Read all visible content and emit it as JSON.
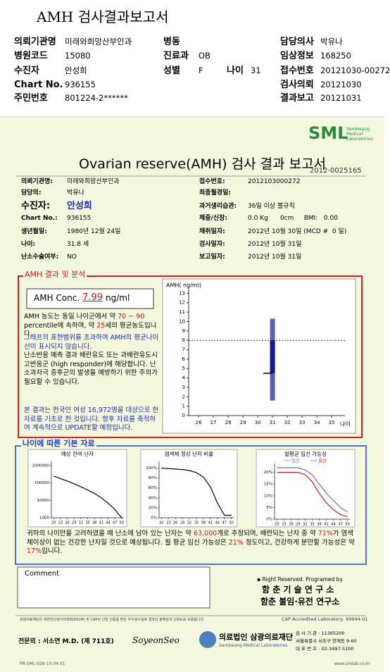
{
  "header": {
    "title": "AMH 검사결과보고서"
  },
  "top_info": {
    "rows": [
      [
        {
          "label": "의뢰기관명",
          "value": "미래와희망산부인과"
        },
        {
          "label": "병동"
        },
        {
          "label": "담당의사",
          "value": "박유나"
        }
      ],
      [
        {
          "label": "병원코드",
          "value": "15080"
        },
        {
          "label": "진료과",
          "value": "OB"
        },
        {
          "label": "임상정보",
          "value": "168250"
        }
      ],
      [
        {
          "label": "수진자",
          "value": "안성희"
        },
        {
          "label": "성별",
          "value": "F"
        },
        {
          "label": "나이",
          "value": "31"
        },
        {
          "label": "접수번호",
          "value": "20121030-00272"
        }
      ],
      [
        {
          "label": "Chart No.",
          "value": "936155"
        },
        {
          "label": "검사의뢰",
          "value": "20121030"
        }
      ],
      [
        {
          "label": "주민번호",
          "value": "801224-2******"
        },
        {
          "label": "결과보고",
          "value": "20121031"
        }
      ]
    ]
  },
  "report": {
    "logo": "SML",
    "logo_sub": "Samkwang Medical Laboratories",
    "title": "Ovarian reserve(AMH) 검사 결과 보고서",
    "number": "2012-0025165"
  },
  "patient_info": {
    "left": [
      {
        "label": "의뢰기관명:",
        "value": "미래와희망산부인과"
      },
      {
        "label": "담당의:",
        "value": "박유나"
      },
      {
        "label": "수진자:",
        "value": "안성희"
      },
      {
        "label": "Chart No.:",
        "value": "936155"
      },
      {
        "label": "생년월일:",
        "value": "1980년 12월 24일"
      },
      {
        "label": "나이:",
        "value": "31.8 세"
      },
      {
        "label": "난소수술여부:",
        "value": "NO"
      }
    ],
    "right": [
      {
        "label": "접수번호:",
        "value": "2012103000272"
      },
      {
        "label": "최종월경일:"
      },
      {
        "label": "과거생리습관:",
        "value": "36일 이상 불규칙"
      },
      {
        "label": "체중/신장:",
        "value": "0.0 Kg      0cm     BMI:   0.00"
      },
      {
        "label": "채취일자:",
        "value": "2012년 10월 30일 (MCD #  0 일)"
      },
      {
        "label": "검사일자:",
        "value": "2012년 10월 31일"
      },
      {
        "label": "보고일자:",
        "value": "2012년 10월 31일"
      }
    ]
  },
  "amh_section": {
    "title": "AMH 결과 및 분석",
    "result": {
      "label": "AMH Conc.",
      "value": 7.99,
      "unit": "ng/ml"
    },
    "paragraphs": [
      {
        "color": "#000",
        "segments": [
          {
            "text": "AMH 농도는 동일 나이군에서 약 "
          },
          {
            "text": "70 ~ 90",
            "red": true
          },
          {
            "text": " percentile에 속하며, 약 "
          },
          {
            "text": "25",
            "red": true
          },
          {
            "text": "세의 평균농도입니다."
          }
        ]
      },
      {
        "color": "#1a2fb0",
        "segments": [
          {
            "text": "그래프의 표현범위를 초과하여 AMH의 평균나이선이 표시되지 않습니다."
          }
        ]
      },
      {
        "color": "#000",
        "segments": [
          {
            "text": "난소반응 예측 결과 배란유도 또는 과배란유도시 고반응군 (high responder)에 해당합니다. 난소과자극 증후군의 발생을 예방하기 위한 주의가 필요할 수 있습니다."
          }
        ]
      },
      {
        "color": "#1a2fb0",
        "segments": [
          {
            "text": "본 결과는 한국인 여성 16,972명을 대상으로 한 자료를 기초로 한 것입니다. 향후 자료를 축적하여 계속적으로 UPDATE할 예정입니다."
          }
        ]
      }
    ]
  },
  "amh_chart": {
    "y_label": "AMH( ng/ml)",
    "x_label": "나이",
    "xlim": [
      25.33,
      35.9
    ],
    "ylim": [
      0,
      13.4
    ],
    "yticks": [
      0,
      1,
      2,
      3,
      4,
      5,
      6,
      7,
      8,
      9,
      10,
      11,
      12,
      13
    ],
    "xticks": [
      26,
      27,
      28,
      29,
      30,
      31,
      32,
      33,
      34,
      35
    ],
    "bar": {
      "x": 31,
      "low": 1.6,
      "high": 10.3,
      "q1": 4.5,
      "q3": 8.0,
      "mid": 4.5
    },
    "color": "#1a1a8c",
    "range_color": "#5a5fa8"
  },
  "age_section": {
    "title": "나이에 따른 기본 자료",
    "summary": [
      {
        "text": "귀하의 나이만을 고려하였을 때 난소에 남아 있는 난자는 약 "
      },
      {
        "text": "63,000",
        "red": true
      },
      {
        "text": "개로 추정되며, 배란되는 난자 중 약 "
      },
      {
        "text": "71%",
        "red": true
      },
      {
        "text": "가 염색체이상이 없는 건강한 난자일 것으로 예상됩니다. 월 평균 임신 가능성은 "
      },
      {
        "text": "21%",
        "red": true
      },
      {
        "text": " 정도이고, 건강하게 분만할 가능성은 약 "
      },
      {
        "text": "17%",
        "red": true
      },
      {
        "text": "입니다."
      }
    ]
  },
  "mini_charts": [
    {
      "title": "예상 잔여 난자",
      "log": true,
      "ylim": [
        1000,
        1000000
      ],
      "yticks": [
        1000000,
        100000,
        10000,
        1000
      ],
      "xlim": [
        19,
        51
      ],
      "xticks": [
        20,
        23,
        26,
        29,
        32,
        35,
        38,
        41,
        44,
        47,
        50
      ],
      "x": [
        20,
        23,
        26,
        29,
        32,
        35,
        38,
        41,
        44,
        47,
        50
      ],
      "series": [
        {
          "color": "#000",
          "values": [
            250000,
            180000,
            130000,
            90000,
            60000,
            40000,
            25000,
            14000,
            7000,
            3000,
            1000
          ]
        }
      ]
    },
    {
      "title": "염색체 정상 난자 비율",
      "log": false,
      "ylim": [
        0,
        105
      ],
      "yticks": [
        {
          "value": 0,
          "label": "0%"
        },
        {
          "value": 20,
          "label": "20%"
        },
        {
          "value": 40,
          "label": "40%"
        },
        {
          "value": 60,
          "label": "60%"
        },
        {
          "value": 80,
          "label": "80%"
        },
        {
          "value": 100,
          "label": "100%"
        }
      ],
      "xlim": [
        19,
        51
      ],
      "xticks": [
        20,
        23,
        26,
        29,
        32,
        35,
        38,
        41,
        44,
        47,
        50
      ],
      "x": [
        20,
        23,
        26,
        29,
        32,
        35,
        38,
        41,
        44,
        47,
        50
      ],
      "series": [
        {
          "color": "#000",
          "values": [
            100,
            99,
            98,
            97,
            95,
            91,
            82,
            62,
            30,
            5,
            5
          ]
        }
      ]
    },
    {
      "title": "월평균 임신 가능성",
      "log": false,
      "ylim": [
        0,
        22
      ],
      "yticks": [
        {
          "value": 0,
          "label": "0%"
        },
        {
          "value": 5,
          "label": "5%"
        },
        {
          "value": 10,
          "label": "10%"
        },
        {
          "value": 15,
          "label": "15%"
        },
        {
          "value": 20,
          "label": "20%"
        }
      ],
      "xlim": [
        19,
        51
      ],
      "xticks": [
        20,
        23,
        26,
        29,
        32,
        35,
        38,
        41,
        44,
        47,
        50
      ],
      "x": [
        20,
        23,
        26,
        29,
        32,
        35,
        38,
        41,
        44,
        47,
        50
      ],
      "series": [
        {
          "name": "임신",
          "color": "#6b6bd6",
          "values": [
            22,
            22,
            22,
            22,
            21,
            19,
            15,
            11,
            8,
            5,
            3
          ]
        },
        {
          "name": "출산",
          "color": "#d22020",
          "values": [
            20,
            20,
            20,
            20,
            19,
            16,
            11,
            7,
            4,
            2,
            1
          ]
        }
      ]
    }
  ],
  "comment": {
    "label": "Comment"
  },
  "credits": {
    "note": "▪ Right Reserved. Programed by",
    "lab1": "함 춘 기 술 연 구 소",
    "lab2": "함춘 불임·유전 연구소"
  },
  "footer": {
    "certification": "삼광의료재단은 대한진단검사의학회(KSLM) 및 CAP의 신임 인증을 받은 우수검사실로 결과의 정확성과 신뢰도를 보증합니다.",
    "cap": "CAP Accredited Laboratory, 69944-01",
    "doctor": "전문의 : 서소연 M.D. (제 711호)",
    "signature": "SoyeonSeo",
    "org": "의료법인 삼광의료재단",
    "org_en": "Samkwang Medical Laboratories",
    "address": [
      "검 사 기 관 : 11365200",
      "서울특별시 서초구 양재동 9-60",
      "대 표 번 호 : 02-3497-5100"
    ],
    "form_code": "PR-SML-028-10.04.01",
    "website": "www.smlab.co.kr"
  }
}
